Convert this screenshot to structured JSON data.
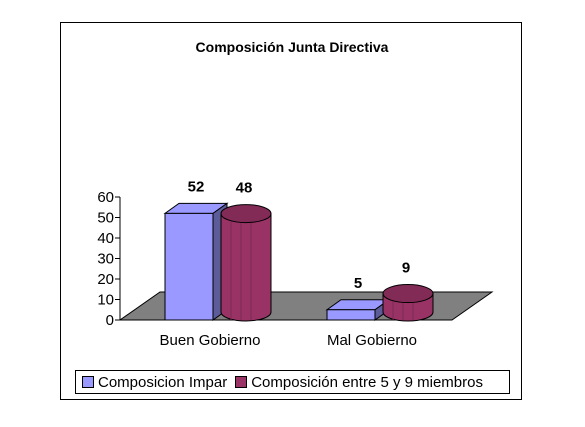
{
  "chart_data": {
    "type": "bar",
    "title": "Composición Junta Directiva",
    "categories": [
      "Buen Gobierno",
      "Mal Gobierno"
    ],
    "series": [
      {
        "name": "Composicion Impar",
        "values": [
          52,
          5
        ],
        "color": "#9999ff",
        "shape": "box"
      },
      {
        "name": "Composición entre 5 y 9 miembros",
        "values": [
          48,
          9
        ],
        "color": "#993366",
        "shape": "cylinder"
      }
    ],
    "ylim": [
      0,
      60
    ],
    "yticks": [
      "0",
      "10",
      "20",
      "30",
      "40",
      "50",
      "60"
    ],
    "floor_color": "#808080",
    "legend_position": "bottom"
  }
}
